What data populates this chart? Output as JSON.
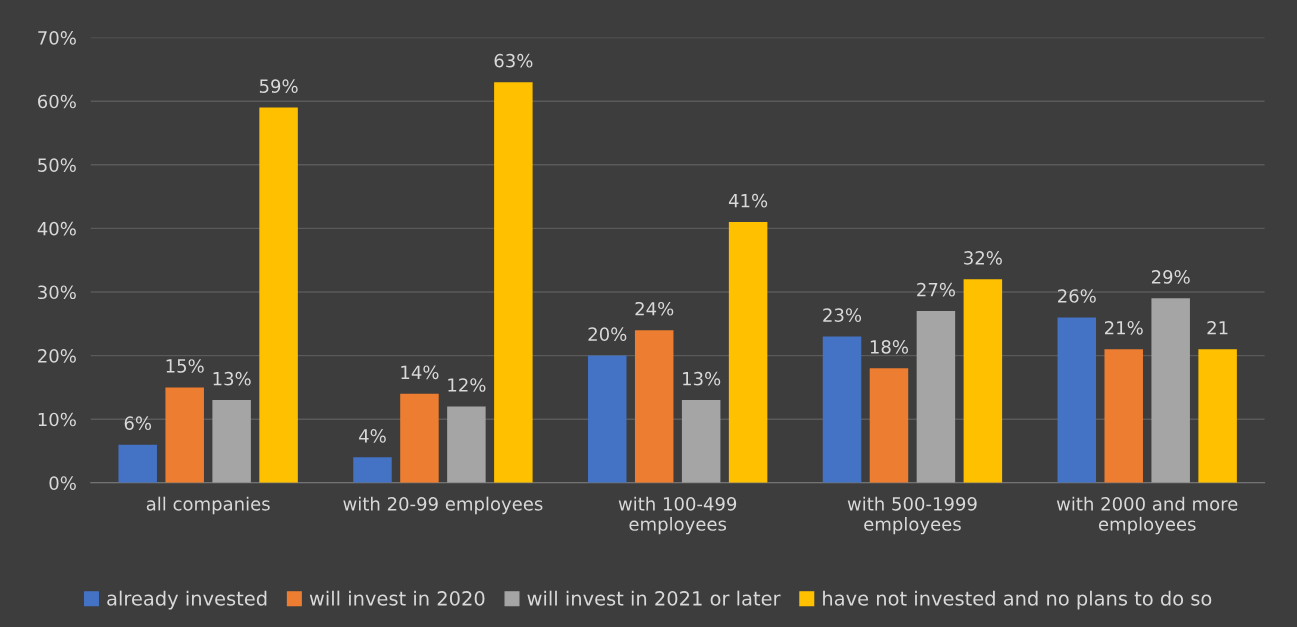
{
  "chart_data": {
    "type": "bar",
    "categories": [
      "all companies",
      "with 20-99 employees",
      "with 100-499\nemployees",
      "with 500-1999\nemployees",
      "with 2000 and more\nemployees"
    ],
    "series": [
      {
        "name": "already invested",
        "color": "#4472c4",
        "values": [
          6,
          4,
          20,
          23,
          26
        ],
        "value_labels": [
          "6%",
          "4%",
          "20%",
          "23%",
          "26%"
        ]
      },
      {
        "name": "will invest in 2020",
        "color": "#ed7d31",
        "values": [
          15,
          14,
          24,
          18,
          21
        ],
        "value_labels": [
          "15%",
          "14%",
          "24%",
          "18%",
          "21%"
        ]
      },
      {
        "name": "will invest in 2021 or later",
        "color": "#a5a5a5",
        "values": [
          13,
          12,
          13,
          27,
          29
        ],
        "value_labels": [
          "13%",
          "12%",
          "13%",
          "27%",
          "29%"
        ]
      },
      {
        "name": "have not invested and no plans to do so",
        "color": "#ffc000",
        "values": [
          59,
          63,
          41,
          32,
          21
        ],
        "value_labels": [
          "59%",
          "63%",
          "41%",
          "32%",
          "21"
        ]
      }
    ],
    "ylim": [
      0,
      70
    ],
    "yticks": [
      {
        "value": 0,
        "label": "0%"
      },
      {
        "value": 10,
        "label": "10%"
      },
      {
        "value": 20,
        "label": "20%"
      },
      {
        "value": 30,
        "label": "30%"
      },
      {
        "value": 40,
        "label": "40%"
      },
      {
        "value": 50,
        "label": "50%"
      },
      {
        "value": 60,
        "label": "60%"
      },
      {
        "value": 70,
        "label": "70%"
      }
    ],
    "grid": "y",
    "legend": "bottom"
  }
}
